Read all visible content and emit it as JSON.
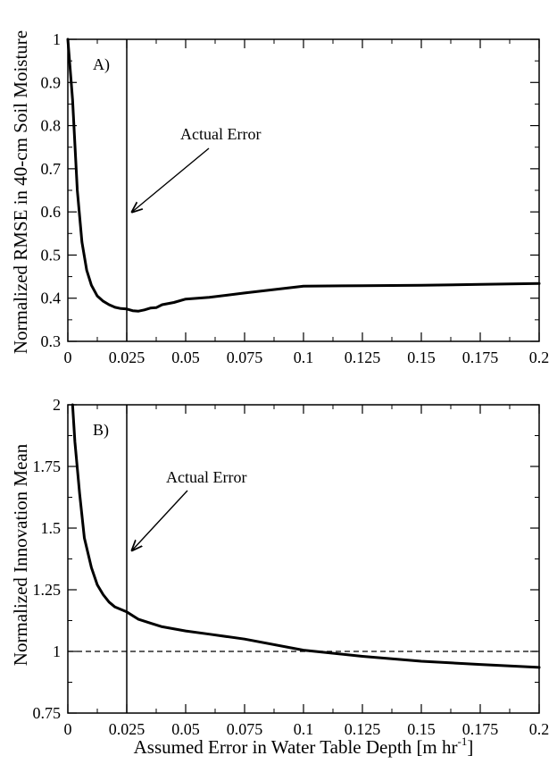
{
  "figure": {
    "xlabel": "Assumed Error in Water Table Depth [m hr",
    "xlabel_sup": "-1",
    "xlabel_tail": "]"
  },
  "chart_data": [
    {
      "type": "line",
      "panel_label": "A)",
      "ylabel": "Normalized RMSE in 40-cm Soil Moisture",
      "xlabel": "",
      "xlim": [
        0,
        0.2
      ],
      "ylim": [
        0.3,
        1.0
      ],
      "xticks": [
        0,
        0.025,
        0.05,
        0.075,
        0.1,
        0.125,
        0.15,
        0.175,
        0.2
      ],
      "xticklabels": [
        "0",
        "0.025",
        "0.05",
        "0.075",
        "0.1",
        "0.125",
        "0.15",
        "0.175",
        "0.2"
      ],
      "yticks": [
        0.3,
        0.4,
        0.5,
        0.6,
        0.7,
        0.8,
        0.9,
        1.0
      ],
      "yticklabels": [
        "0.3",
        "0.4",
        "0.5",
        "0.6",
        "0.7",
        "0.8",
        "0.9",
        "1"
      ],
      "grid": false,
      "vline_x": 0.025,
      "annotation": {
        "text": "Actual Error",
        "target": [
          0.025,
          0.6
        ]
      },
      "series": [
        {
          "x": [
            0,
            0.002,
            0.004,
            0.006,
            0.008,
            0.01,
            0.0125,
            0.015,
            0.0175,
            0.02,
            0.0225,
            0.025,
            0.0275,
            0.03,
            0.0325,
            0.035,
            0.0375,
            0.04,
            0.045,
            0.05,
            0.06,
            0.075,
            0.1,
            0.125,
            0.15,
            0.175,
            0.2
          ],
          "y": [
            1.0,
            0.86,
            0.65,
            0.53,
            0.465,
            0.43,
            0.405,
            0.393,
            0.385,
            0.379,
            0.376,
            0.375,
            0.371,
            0.37,
            0.373,
            0.377,
            0.378,
            0.385,
            0.39,
            0.398,
            0.402,
            0.412,
            0.428,
            0.429,
            0.43,
            0.432,
            0.434
          ]
        }
      ]
    },
    {
      "type": "line",
      "panel_label": "B)",
      "ylabel": "Normalized Innovation Mean",
      "xlabel": "Assumed Error in Water Table Depth [m hr-1]",
      "xlim": [
        0,
        0.2
      ],
      "ylim": [
        0.75,
        2.0
      ],
      "xticks": [
        0,
        0.025,
        0.05,
        0.075,
        0.1,
        0.125,
        0.15,
        0.175,
        0.2
      ],
      "xticklabels": [
        "0",
        "0.025",
        "0.05",
        "0.075",
        "0.1",
        "0.125",
        "0.15",
        "0.175",
        "0.2"
      ],
      "yticks": [
        0.75,
        1.0,
        1.25,
        1.5,
        1.75,
        2.0
      ],
      "yticklabels": [
        "0.75",
        "1",
        "1.25",
        "1.5",
        "1.75",
        "2"
      ],
      "grid": false,
      "vline_x": 0.025,
      "hline_y": 1.0,
      "annotation": {
        "text": "Actual Error",
        "target": [
          0.025,
          1.41
        ]
      },
      "series": [
        {
          "x": [
            0.002,
            0.003,
            0.005,
            0.007,
            0.01,
            0.0125,
            0.015,
            0.0175,
            0.02,
            0.025,
            0.03,
            0.035,
            0.04,
            0.05,
            0.06,
            0.075,
            0.1,
            0.125,
            0.15,
            0.175,
            0.2
          ],
          "y": [
            2.0,
            1.85,
            1.64,
            1.46,
            1.34,
            1.27,
            1.23,
            1.2,
            1.18,
            1.16,
            1.13,
            1.115,
            1.1,
            1.083,
            1.07,
            1.05,
            1.005,
            0.98,
            0.96,
            0.947,
            0.935
          ]
        }
      ]
    }
  ]
}
